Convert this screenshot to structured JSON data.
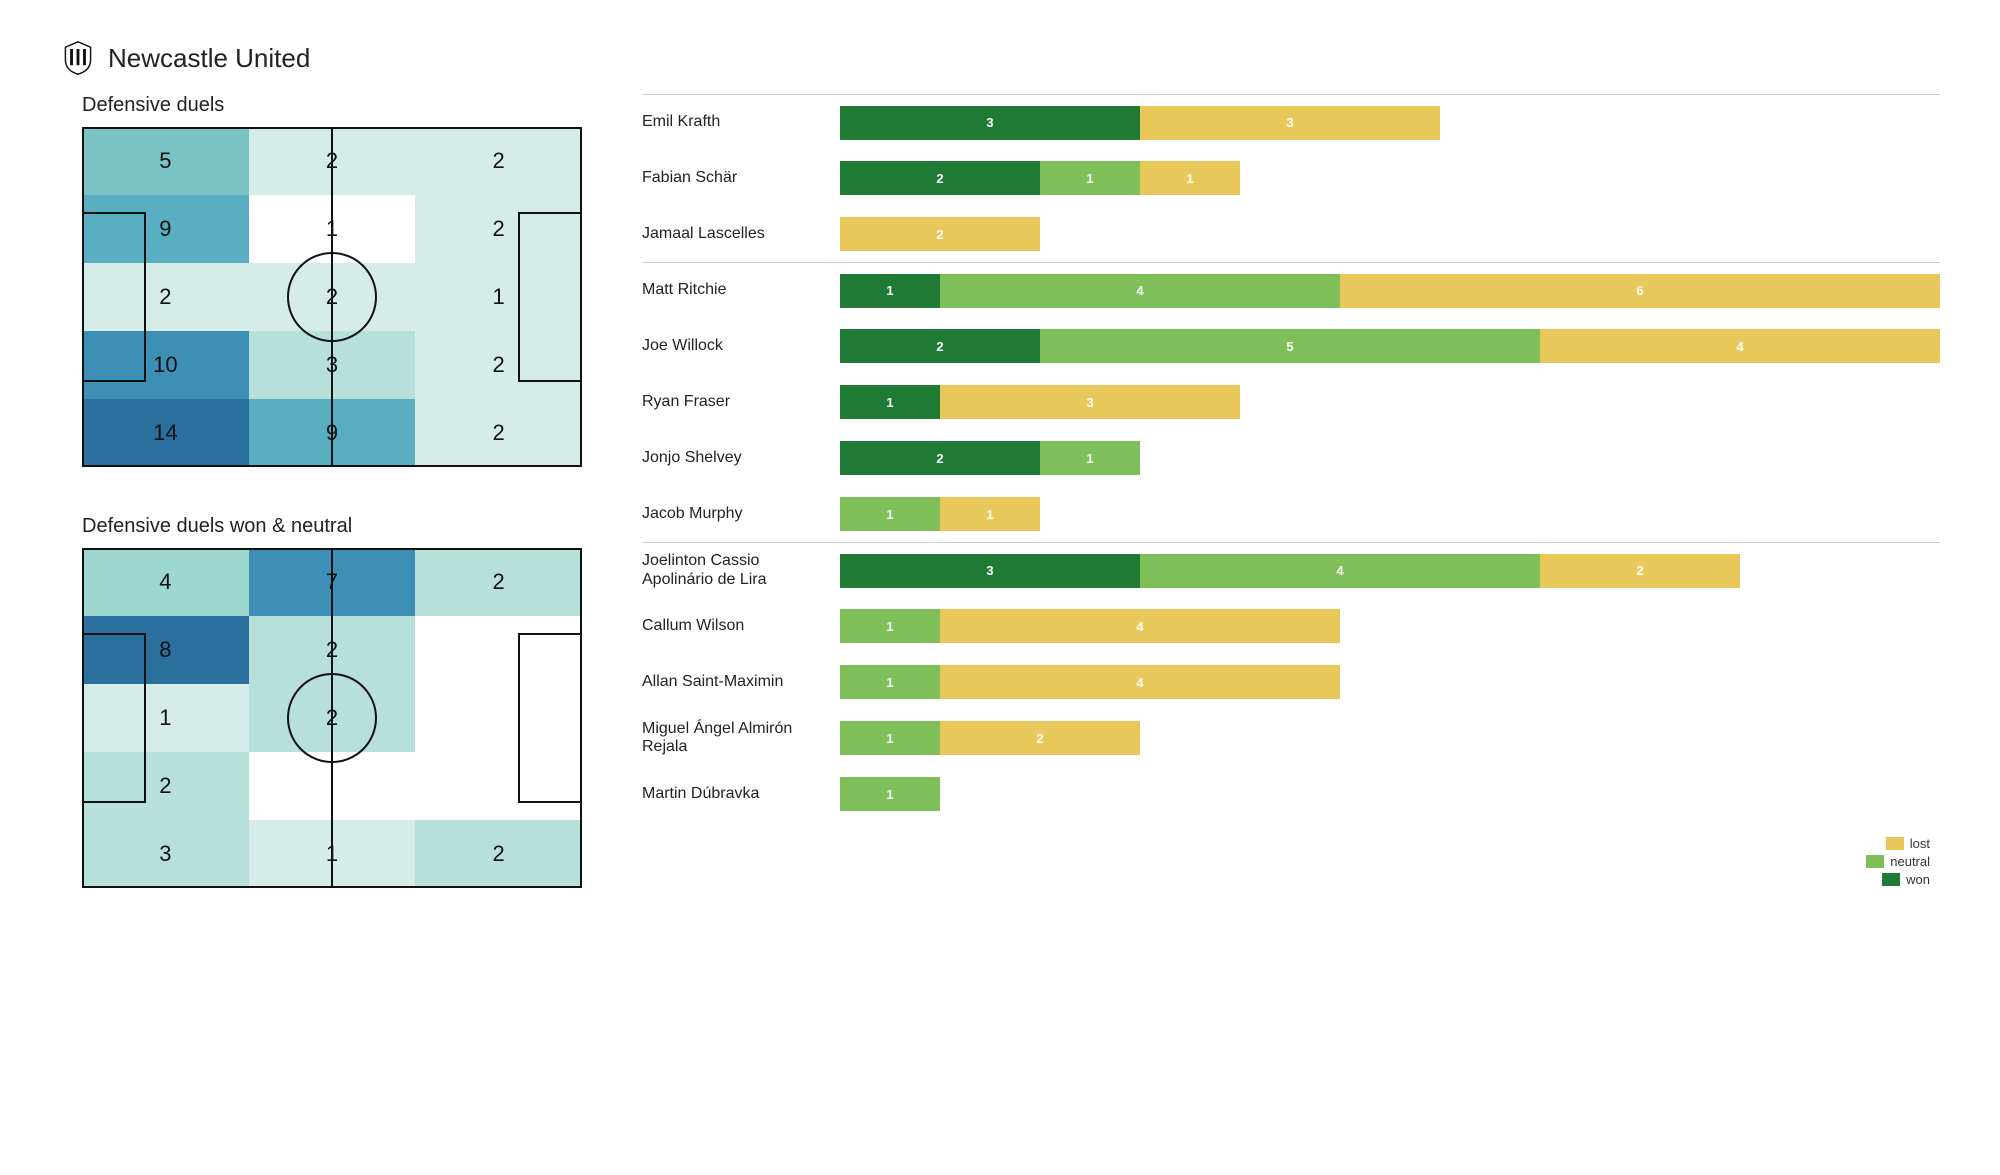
{
  "team": "Newcastle United",
  "colors": {
    "won": "#1f7a35",
    "neutral": "#7fbf5a",
    "lost": "#e9c85b",
    "text_on_lost": "#ffffff",
    "heat_scale": [
      "#ffffff",
      "#d6ece8",
      "#b8e0db",
      "#9ed6d0",
      "#7cc3c4",
      "#5aaec2",
      "#3e8fb5",
      "#2b6f9e"
    ]
  },
  "pitches": [
    {
      "title": "Defensive duels",
      "grid": [
        [
          5,
          2,
          2
        ],
        [
          9,
          1,
          2
        ],
        [
          2,
          2,
          1
        ],
        [
          10,
          3,
          2
        ],
        [
          14,
          9,
          2
        ]
      ],
      "intensity": [
        [
          4,
          1,
          1
        ],
        [
          5,
          0,
          1
        ],
        [
          1,
          1,
          1
        ],
        [
          6,
          2,
          1
        ],
        [
          7,
          5,
          1
        ]
      ]
    },
    {
      "title": "Defensive duels won & neutral",
      "grid": [
        [
          4,
          7,
          2
        ],
        [
          8,
          2,
          null
        ],
        [
          1,
          2,
          null
        ],
        [
          2,
          null,
          null
        ],
        [
          3,
          1,
          2
        ]
      ],
      "intensity": [
        [
          3,
          6,
          2
        ],
        [
          7,
          2,
          0
        ],
        [
          1,
          2,
          0
        ],
        [
          2,
          0,
          0
        ],
        [
          2,
          1,
          2
        ]
      ]
    }
  ],
  "bar_max": 11,
  "players": [
    {
      "name": "Emil Krafth",
      "group_start": true,
      "won": 3,
      "neutral": 0,
      "lost": 3
    },
    {
      "name": "Fabian Schär",
      "won": 2,
      "neutral": 1,
      "lost": 1
    },
    {
      "name": "Jamaal Lascelles",
      "won": 0,
      "neutral": 0,
      "lost": 2
    },
    {
      "name": "Matt Ritchie",
      "group_start": true,
      "won": 1,
      "neutral": 4,
      "lost": 6
    },
    {
      "name": "Joe Willock",
      "won": 2,
      "neutral": 5,
      "lost": 4
    },
    {
      "name": "Ryan Fraser",
      "won": 1,
      "neutral": 0,
      "lost": 3
    },
    {
      "name": "Jonjo Shelvey",
      "won": 2,
      "neutral": 1,
      "lost": 0
    },
    {
      "name": "Jacob Murphy",
      "won": 0,
      "neutral": 1,
      "lost": 1
    },
    {
      "name": "Joelinton Cassio Apolinário de Lira",
      "group_start": true,
      "won": 3,
      "neutral": 4,
      "lost": 2
    },
    {
      "name": "Callum Wilson",
      "won": 0,
      "neutral": 1,
      "lost": 4
    },
    {
      "name": "Allan Saint-Maximin",
      "won": 0,
      "neutral": 1,
      "lost": 4
    },
    {
      "name": "Miguel Ángel Almirón Rejala",
      "won": 0,
      "neutral": 1,
      "lost": 2
    },
    {
      "name": "Martin Dúbravka",
      "won": 0,
      "neutral": 1,
      "lost": 0
    }
  ],
  "legend": [
    {
      "label": "lost",
      "color_key": "lost"
    },
    {
      "label": "neutral",
      "color_key": "neutral"
    },
    {
      "label": "won",
      "color_key": "won"
    }
  ]
}
